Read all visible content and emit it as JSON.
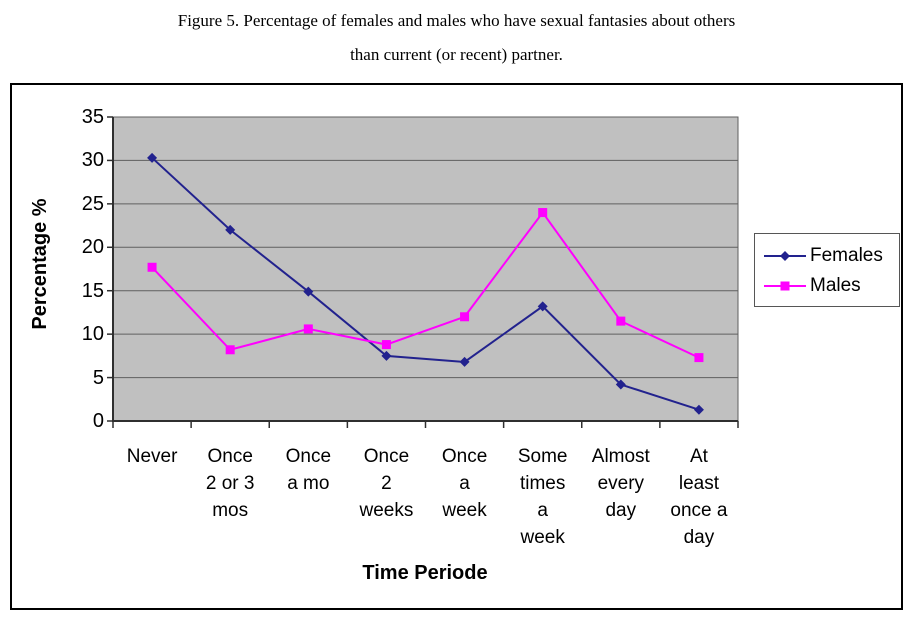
{
  "figure": {
    "title_line1": "Figure 5. Percentage of females and males who have sexual fantasies about others",
    "title_line2": "than current (or recent) partner."
  },
  "legend": {
    "entries": [
      "Females",
      "Males"
    ]
  },
  "chart_data": {
    "type": "line",
    "title": "Figure 5. Percentage of females and males who have sexual fantasies about others than current (or recent) partner.",
    "xlabel": "Time Periode",
    "ylabel": "Percentage %",
    "ylim": [
      0,
      35
    ],
    "y_ticks": [
      0,
      5,
      10,
      15,
      20,
      25,
      30,
      35
    ],
    "grid": true,
    "legend_position": "right",
    "colors": {
      "plot_background": "#c0c0c0",
      "gridline": "#5f5f5f",
      "axis": "#2f2f2f",
      "females": "#22228e",
      "males": "#ff00ff"
    },
    "categories": [
      "Never",
      "Once 2 or 3 mos",
      "Once a mo",
      "Once 2 weeks",
      "Once a week",
      "Some times a week",
      "Almost every day",
      "At least once a day"
    ],
    "category_label_lines": [
      [
        "Never"
      ],
      [
        "Once",
        "2 or 3",
        "mos"
      ],
      [
        "Once",
        "a mo"
      ],
      [
        "Once",
        "2",
        "weeks"
      ],
      [
        "Once",
        "a",
        "week"
      ],
      [
        "Some",
        "times",
        "a",
        "week"
      ],
      [
        "Almost",
        "every",
        "day"
      ],
      [
        "At",
        "least",
        "once a",
        "day"
      ]
    ],
    "series": [
      {
        "name": "Females",
        "color": "#22228e",
        "marker": "diamond",
        "values": [
          30.3,
          22,
          14.9,
          7.5,
          6.8,
          13.2,
          4.2,
          1.3
        ]
      },
      {
        "name": "Males",
        "color": "#ff00ff",
        "marker": "square",
        "values": [
          17.7,
          8.2,
          10.6,
          8.8,
          12,
          24,
          11.5,
          7.3
        ]
      }
    ]
  }
}
